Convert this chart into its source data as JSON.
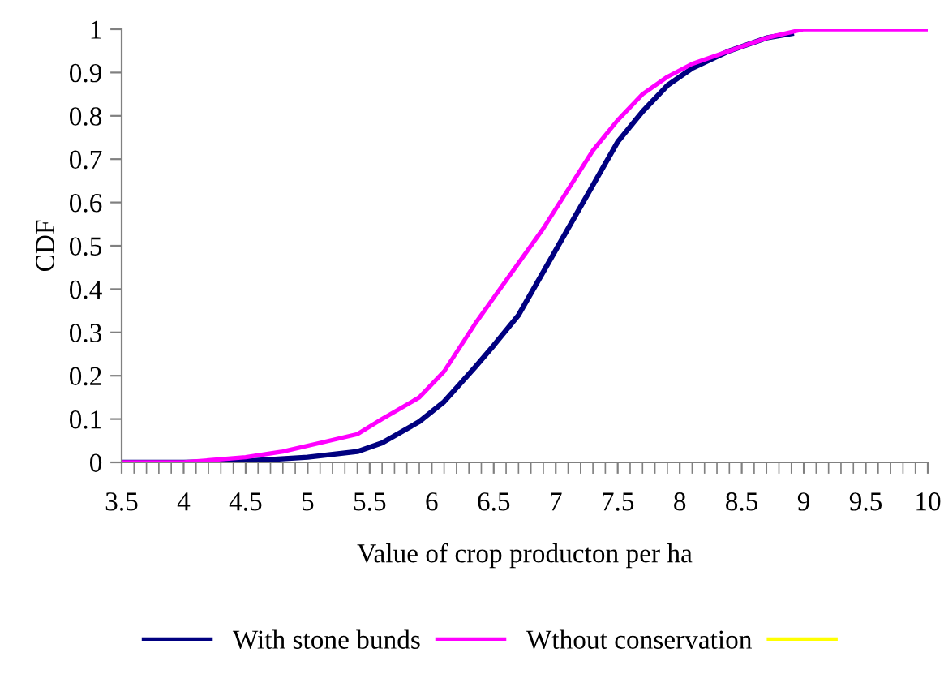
{
  "chart_data": {
    "type": "line",
    "xlabel": "Value of crop producton per ha",
    "ylabel": "CDF",
    "xlim": [
      3.5,
      10
    ],
    "xticks": [
      3.5,
      4,
      4.5,
      5,
      5.5,
      6,
      6.5,
      7,
      7.5,
      8,
      8.5,
      9,
      9.5,
      10
    ],
    "ylim": [
      0,
      1
    ],
    "yticks": [
      0,
      0.1,
      0.2,
      0.3,
      0.4,
      0.5,
      0.6,
      0.7,
      0.8,
      0.9,
      1
    ],
    "grid": false,
    "legend": "bottom",
    "marker": "none",
    "line_style": "solid",
    "series": [
      {
        "name": "With stone bunds",
        "color": "#000080",
        "x": [
          3.5,
          4,
          4.5,
          5,
          5.4,
          5.6,
          5.9,
          6.1,
          6.35,
          6.5,
          6.7,
          6.9,
          7.1,
          7.3,
          7.5,
          7.7,
          7.9,
          8.1,
          8.4,
          8.7,
          8.9
        ],
        "values": [
          0,
          0,
          0.003,
          0.012,
          0.025,
          0.045,
          0.094,
          0.14,
          0.22,
          0.27,
          0.34,
          0.44,
          0.54,
          0.64,
          0.74,
          0.81,
          0.87,
          0.91,
          0.95,
          0.98,
          0.99
        ]
      },
      {
        "name": "Wthout conservation",
        "color": "#ff00ff",
        "x": [
          3.5,
          4,
          4.5,
          4.8,
          5.1,
          5.4,
          5.6,
          5.9,
          6.1,
          6.35,
          6.5,
          6.7,
          6.9,
          7.1,
          7.3,
          7.5,
          7.7,
          7.9,
          8.1,
          8.4,
          8.7,
          9,
          9.5,
          10
        ],
        "values": [
          0,
          0,
          0.012,
          0.025,
          0.045,
          0.065,
          0.1,
          0.15,
          0.21,
          0.32,
          0.38,
          0.46,
          0.54,
          0.63,
          0.72,
          0.79,
          0.85,
          0.89,
          0.92,
          0.95,
          0.98,
          1,
          1,
          1
        ]
      },
      {
        "color": "#ffff00"
      }
    ]
  }
}
